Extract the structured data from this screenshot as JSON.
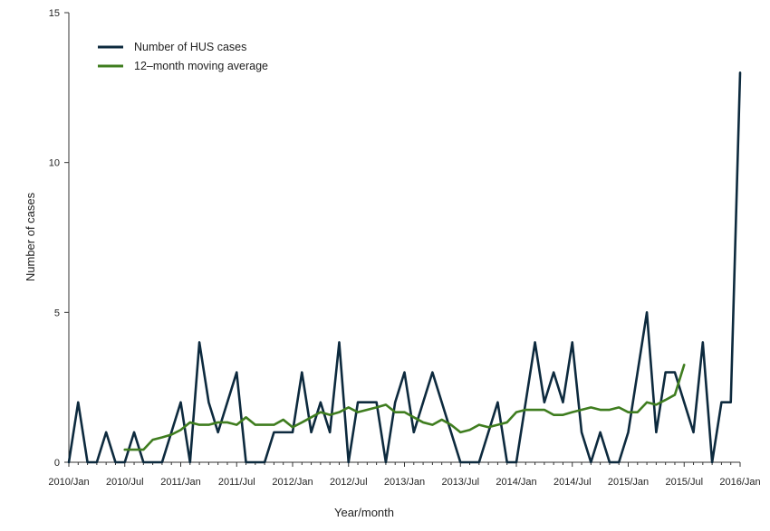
{
  "chart_data": {
    "type": "line",
    "title": "",
    "xlabel": "Year/month",
    "ylabel": "Number of cases",
    "ylim": [
      0,
      15
    ],
    "yticks": [
      0,
      5,
      10,
      15
    ],
    "x_start": "2010/Jan",
    "x_end": "2016/Jan",
    "x_tick_labels": [
      "2010/Jan",
      "2010/Jul",
      "2011/Jan",
      "2011/Jul",
      "2012/Jan",
      "2012/Jul",
      "2013/Jan",
      "2013/Jul",
      "2014/Jan",
      "2014/Jul",
      "2015/Jan",
      "2015/Jul",
      "2016/Jan"
    ],
    "grid": false,
    "legend_position": "top-left",
    "series": [
      {
        "name": "Number of HUS cases",
        "color": "#0d2a3e",
        "values": [
          0,
          2,
          0,
          0,
          1,
          0,
          0,
          1,
          0,
          0,
          0,
          1,
          2,
          0,
          4,
          2,
          1,
          2,
          3,
          0,
          0,
          0,
          1,
          1,
          1,
          3,
          1,
          2,
          1,
          4,
          0,
          2,
          2,
          2,
          0,
          2,
          3,
          1,
          2,
          3,
          2,
          1,
          0,
          0,
          0,
          1,
          2,
          0,
          0,
          2,
          4,
          2,
          3,
          2,
          4,
          1,
          0,
          1,
          0,
          0,
          1,
          3,
          5,
          1,
          3,
          3,
          2,
          1,
          4,
          0,
          2,
          2,
          13
        ]
      },
      {
        "name": "12–month moving average",
        "color": "#3f7d1f",
        "values": [
          null,
          null,
          null,
          null,
          null,
          null,
          0.42,
          0.42,
          0.42,
          0.75,
          0.83,
          0.92,
          1.08,
          1.33,
          1.25,
          1.25,
          1.33,
          1.33,
          1.25,
          1.5,
          1.25,
          1.25,
          1.25,
          1.42,
          1.17,
          1.33,
          1.5,
          1.67,
          1.58,
          1.67,
          1.83,
          1.67,
          1.75,
          1.83,
          1.92,
          1.67,
          1.67,
          1.5,
          1.33,
          1.25,
          1.42,
          1.25,
          1.0,
          1.08,
          1.25,
          1.17,
          1.25,
          1.33,
          1.67,
          1.75,
          1.75,
          1.75,
          1.58,
          1.58,
          1.67,
          1.75,
          1.83,
          1.75,
          1.75,
          1.83,
          1.67,
          1.67,
          2.0,
          1.92,
          2.08,
          2.25,
          3.25
        ]
      }
    ]
  }
}
